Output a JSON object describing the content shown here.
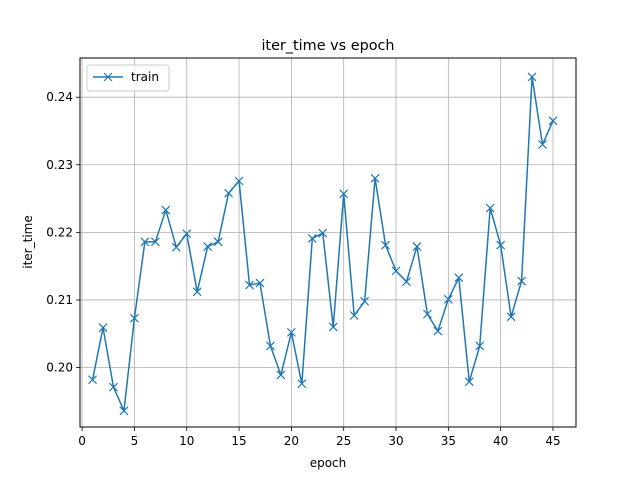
{
  "chart_data": {
    "type": "line",
    "title": "iter_time vs epoch",
    "xlabel": "epoch",
    "ylabel": "iter_time",
    "xlim": [
      -0.2,
      47.2
    ],
    "ylim": [
      0.1912,
      0.2458
    ],
    "xticks": [
      0,
      5,
      10,
      15,
      20,
      25,
      30,
      35,
      40,
      45
    ],
    "yticks": [
      0.2,
      0.21,
      0.22,
      0.23,
      0.24
    ],
    "ytick_labels": [
      "0.20",
      "0.21",
      "0.22",
      "0.23",
      "0.24"
    ],
    "grid": true,
    "legend_position": "upper-left",
    "series": [
      {
        "name": "train",
        "color": "#1f77b4",
        "marker": "x",
        "x": [
          1,
          2,
          3,
          4,
          5,
          6,
          7,
          8,
          9,
          10,
          11,
          12,
          13,
          14,
          15,
          16,
          17,
          18,
          19,
          20,
          21,
          22,
          23,
          24,
          25,
          26,
          27,
          28,
          29,
          30,
          31,
          32,
          33,
          34,
          35,
          36,
          37,
          38,
          39,
          40,
          41,
          42,
          43,
          44,
          45
        ],
        "y": [
          0.1982,
          0.2059,
          0.1971,
          0.1936,
          0.2073,
          0.2186,
          0.2186,
          0.2233,
          0.2178,
          0.2198,
          0.2112,
          0.2179,
          0.2186,
          0.2258,
          0.2276,
          0.2122,
          0.2125,
          0.2032,
          0.1989,
          0.2052,
          0.1976,
          0.2191,
          0.2199,
          0.206,
          0.2257,
          0.2077,
          0.2098,
          0.228,
          0.2181,
          0.2143,
          0.2127,
          0.2179,
          0.2079,
          0.2054,
          0.2101,
          0.2133,
          0.1979,
          0.2032,
          0.2236,
          0.2181,
          0.2075,
          0.2128,
          0.243,
          0.233,
          0.2365
        ]
      }
    ]
  }
}
